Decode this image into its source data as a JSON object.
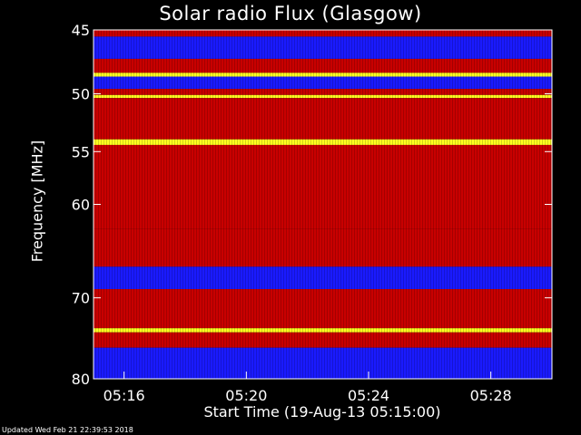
{
  "chart_data": {
    "type": "heatmap",
    "title": "Solar radio Flux (Glasgow)",
    "ylabel": "Frequency [MHz]",
    "xlabel": "Start Time (19-Aug-13 05:15:00)",
    "y_ticks": [
      {
        "value": 45,
        "label": "45"
      },
      {
        "value": 50,
        "label": "50"
      },
      {
        "value": 55,
        "label": "55"
      },
      {
        "value": 60,
        "label": "60"
      },
      {
        "value": 70,
        "label": "70"
      },
      {
        "value": 80,
        "label": "80"
      }
    ],
    "x_ticks": [
      {
        "value": "05:16",
        "label": "05:16"
      },
      {
        "value": "05:20",
        "label": "05:20"
      },
      {
        "value": "05:24",
        "label": "05:24"
      },
      {
        "value": "05:28",
        "label": "05:28"
      }
    ],
    "ylim": [
      45,
      80
    ],
    "xlim": [
      "05:15:00",
      "05:30:00"
    ],
    "y_scale": "log",
    "colors": {
      "low": "#1a1aff",
      "mid": "#c80000",
      "high": "#ffff20"
    },
    "bands": [
      {
        "f0": 45.0,
        "f1": 45.5,
        "level": "mid"
      },
      {
        "f0": 45.5,
        "f1": 47.2,
        "level": "low"
      },
      {
        "f0": 47.2,
        "f1": 48.3,
        "level": "mid"
      },
      {
        "f0": 48.3,
        "f1": 48.6,
        "level": "high"
      },
      {
        "f0": 48.6,
        "f1": 49.6,
        "level": "low"
      },
      {
        "f0": 49.6,
        "f1": 50.1,
        "level": "mid"
      },
      {
        "f0": 50.1,
        "f1": 50.35,
        "level": "high"
      },
      {
        "f0": 50.35,
        "f1": 53.9,
        "level": "mid"
      },
      {
        "f0": 53.9,
        "f1": 54.4,
        "level": "high"
      },
      {
        "f0": 54.4,
        "f1": 62.5,
        "level": "mid"
      },
      {
        "f0": 62.5,
        "f1": 66.5,
        "level": "mid"
      },
      {
        "f0": 66.5,
        "f1": 69.0,
        "level": "low"
      },
      {
        "f0": 69.0,
        "f1": 73.6,
        "level": "mid"
      },
      {
        "f0": 73.6,
        "f1": 74.1,
        "level": "high"
      },
      {
        "f0": 74.1,
        "f1": 76.0,
        "level": "mid"
      },
      {
        "f0": 76.0,
        "f1": 80.0,
        "level": "low"
      }
    ]
  },
  "footer": {
    "updated": "Updated Wed Feb 21 22:39:53 2018"
  }
}
